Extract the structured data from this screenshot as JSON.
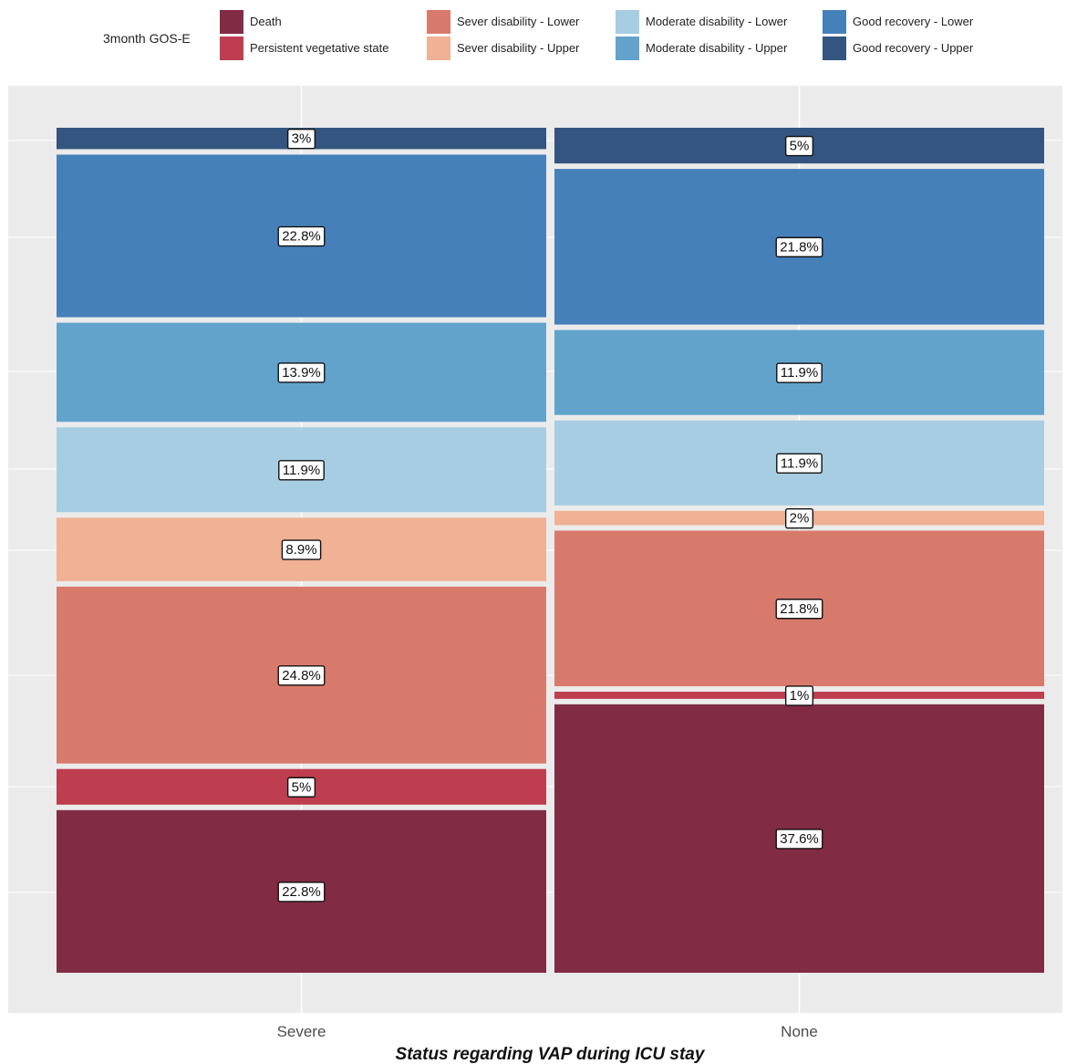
{
  "legend": {
    "title": "3month GOS-E",
    "items": [
      {
        "label": "Death",
        "color": "#812b45"
      },
      {
        "label": "Persistent vegetative state",
        "color": "#be3d4f"
      },
      {
        "label": "Sever disability - Lower",
        "color": "#d87a6b"
      },
      {
        "label": "Sever disability - Upper",
        "color": "#f0b194"
      },
      {
        "label": "Moderate disability - Lower",
        "color": "#a7cde2"
      },
      {
        "label": "Moderate disability - Upper",
        "color": "#62a3cb"
      },
      {
        "label": "Good recovery - Lower",
        "color": "#4680b9"
      },
      {
        "label": "Good recovery - Upper",
        "color": "#33557f"
      }
    ]
  },
  "chart_data": {
    "type": "bar",
    "subtype": "stacked-percent (mosaic)",
    "xlabel": "Status regarding VAP during ICU stay",
    "ylabel": "",
    "categories": [
      "Severe",
      "None"
    ],
    "grid": true,
    "legend_position": "top",
    "series": [
      {
        "name": "Death",
        "values": [
          22.8,
          37.6
        ],
        "labels": [
          "22.8%",
          "37.6%"
        ]
      },
      {
        "name": "Persistent vegetative state",
        "values": [
          5,
          1
        ],
        "labels": [
          "5%",
          "1%"
        ]
      },
      {
        "name": "Sever disability - Lower",
        "values": [
          24.8,
          21.8
        ],
        "labels": [
          "24.8%",
          "21.8%"
        ]
      },
      {
        "name": "Sever disability - Upper",
        "values": [
          8.9,
          2
        ],
        "labels": [
          "8.9%",
          "2%"
        ]
      },
      {
        "name": "Moderate disability - Lower",
        "values": [
          11.9,
          11.9
        ],
        "labels": [
          "11.9%",
          "11.9%"
        ]
      },
      {
        "name": "Moderate disability - Upper",
        "values": [
          13.9,
          11.9
        ],
        "labels": [
          "13.9%",
          "11.9%"
        ]
      },
      {
        "name": "Good recovery - Lower",
        "values": [
          22.8,
          21.8
        ],
        "labels": [
          "22.8%",
          "21.8%"
        ]
      },
      {
        "name": "Good recovery - Upper",
        "values": [
          3,
          5
        ],
        "labels": [
          "3%",
          "5%"
        ]
      }
    ]
  }
}
